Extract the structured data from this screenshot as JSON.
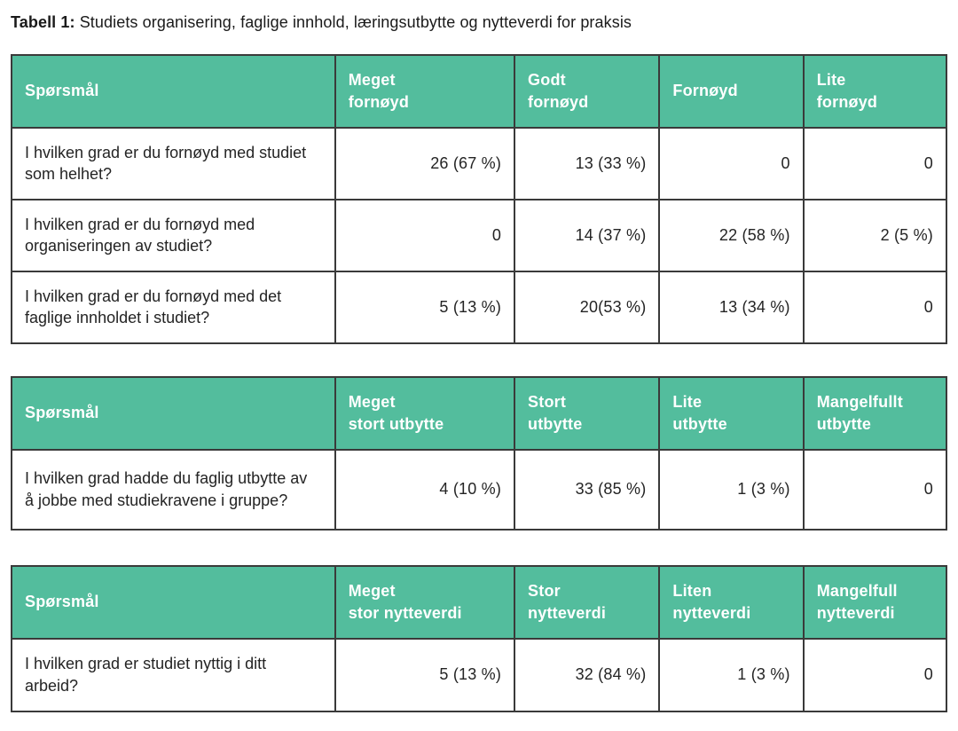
{
  "caption": {
    "label": "Tabell 1:",
    "text": " Studiets organisering, faglige innhold, læringsutbytte og nytteverdi for praksis"
  },
  "colors": {
    "header_bg": "#53bd9d",
    "header_text": "#ffffff",
    "border": "#3a3a3a",
    "body_text": "#242424"
  },
  "tables": [
    {
      "name": "fornoyd",
      "headers": [
        "Spørsmål",
        "Meget\nfornøyd",
        "Godt\nfornøyd",
        "Fornøyd",
        "Lite\nfornøyd"
      ],
      "rows": [
        {
          "question": "I hvilken grad er du fornøyd med studiet som helhet?",
          "values": [
            "26 (67 %)",
            "13 (33 %)",
            "0",
            "0"
          ]
        },
        {
          "question": "I hvilken grad er du fornøyd med organiseringen av studiet?",
          "values": [
            "0",
            "14 (37 %)",
            "22 (58 %)",
            "2 (5 %)"
          ]
        },
        {
          "question": "I hvilken grad er du fornøyd med det faglige innholdet i studiet?",
          "values": [
            "5 (13 %)",
            "20(53 %)",
            "13 (34 %)",
            "0"
          ]
        }
      ]
    },
    {
      "name": "utbytte",
      "headers": [
        "Spørsmål",
        "Meget\nstort utbytte",
        "Stort\nutbytte",
        "Lite\nutbytte",
        "Mangelfullt\nutbytte"
      ],
      "rows": [
        {
          "question": "I hvilken grad hadde du faglig utbytte av å jobbe med stud­iekravene i gruppe?",
          "values": [
            "4 (10 %)",
            "33 (85 %)",
            "1 (3 %)",
            "0"
          ]
        }
      ]
    },
    {
      "name": "nytteverdi",
      "headers": [
        "Spørsmål",
        "Meget\nstor nytteverdi",
        "Stor\nnytteverdi",
        "Liten\nnytteverdi",
        "Mangelfull\nnytteverdi"
      ],
      "rows": [
        {
          "question": "I hvilken grad er studiet nyttig i ditt arbeid?",
          "values": [
            "5 (13 %)",
            "32 (84 %)",
            "1 (3 %)",
            "0"
          ]
        }
      ]
    }
  ]
}
